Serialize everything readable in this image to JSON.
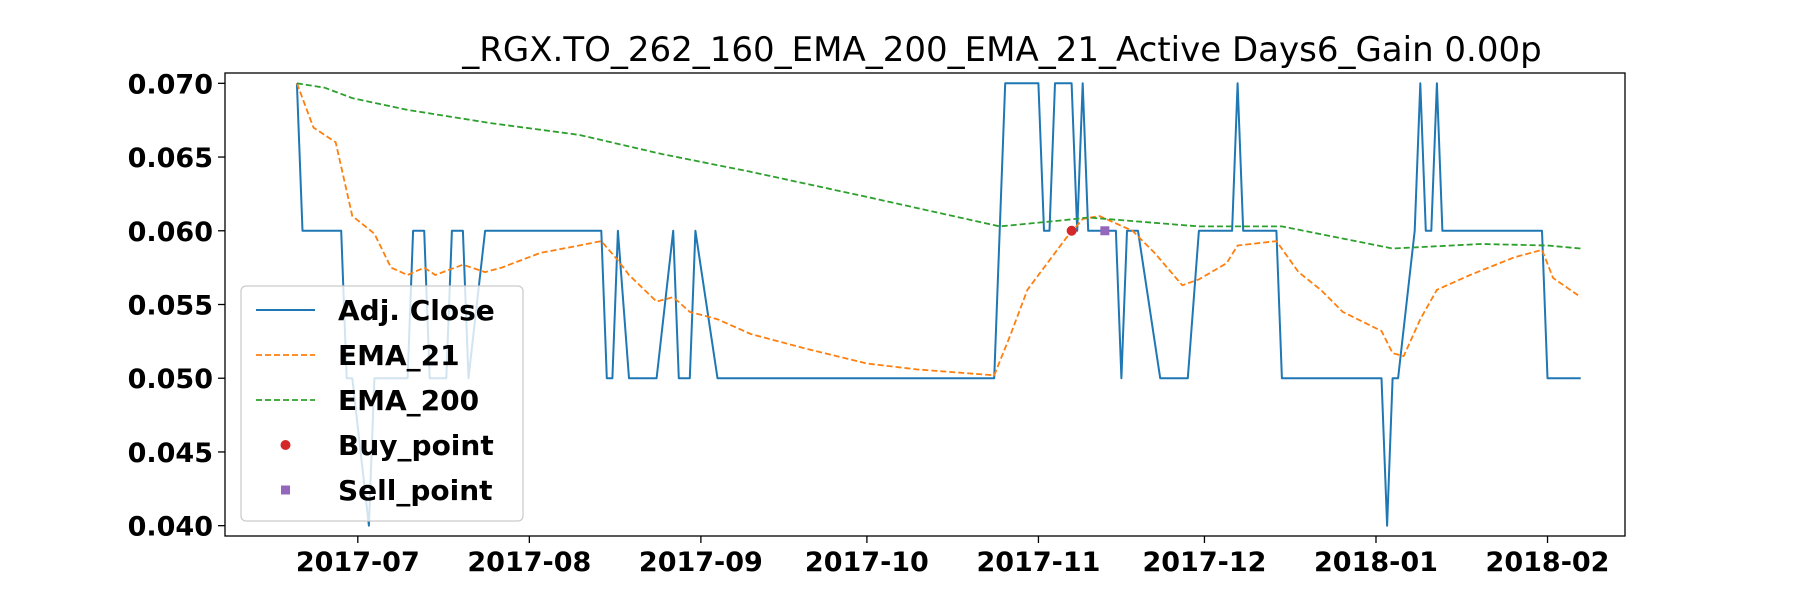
{
  "chart_data": {
    "type": "line",
    "title": "_RGX.TO_262_160_EMA_200_EMA_21_Active Days6_Gain   0.00p",
    "xlabel": "",
    "ylabel": "",
    "xlim": [
      "2017-06-07",
      "2018-02-15"
    ],
    "ylim": [
      0.0393,
      0.0707
    ],
    "grid": false,
    "legend_position": "lower-left",
    "x_ticks": [
      "2017-07",
      "2017-08",
      "2017-09",
      "2017-10",
      "2017-11",
      "2017-12",
      "2018-01",
      "2018-02"
    ],
    "y_ticks": [
      "0.070",
      "0.065",
      "0.060",
      "0.055",
      "0.050",
      "0.045",
      "0.040"
    ],
    "colors": {
      "adj_close": "#1f77b4",
      "ema_21": "#ff7f0e",
      "ema_200": "#2ca02c",
      "buy": "#d62728",
      "sell": "#9467bd"
    },
    "series": [
      {
        "name": "Adj. Close",
        "style": "solid",
        "points": [
          [
            "2017-06-20",
            0.07
          ],
          [
            "2017-06-21",
            0.06
          ],
          [
            "2017-06-28",
            0.06
          ],
          [
            "2017-06-29",
            0.05
          ],
          [
            "2017-06-30",
            0.05
          ],
          [
            "2017-07-03",
            0.04
          ],
          [
            "2017-07-04",
            0.05
          ],
          [
            "2017-07-10",
            0.05
          ],
          [
            "2017-07-11",
            0.06
          ],
          [
            "2017-07-13",
            0.06
          ],
          [
            "2017-07-14",
            0.05
          ],
          [
            "2017-07-17",
            0.05
          ],
          [
            "2017-07-18",
            0.06
          ],
          [
            "2017-07-20",
            0.06
          ],
          [
            "2017-07-21",
            0.05
          ],
          [
            "2017-07-24",
            0.06
          ],
          [
            "2017-08-14",
            0.06
          ],
          [
            "2017-08-15",
            0.05
          ],
          [
            "2017-08-16",
            0.05
          ],
          [
            "2017-08-17",
            0.06
          ],
          [
            "2017-08-19",
            0.05
          ],
          [
            "2017-08-24",
            0.05
          ],
          [
            "2017-08-27",
            0.06
          ],
          [
            "2017-08-28",
            0.05
          ],
          [
            "2017-08-30",
            0.05
          ],
          [
            "2017-08-31",
            0.06
          ],
          [
            "2017-09-04",
            0.05
          ],
          [
            "2017-10-24",
            0.05
          ],
          [
            "2017-10-26",
            0.07
          ],
          [
            "2017-11-01",
            0.07
          ],
          [
            "2017-11-02",
            0.06
          ],
          [
            "2017-11-03",
            0.06
          ],
          [
            "2017-11-04",
            0.07
          ],
          [
            "2017-11-07",
            0.07
          ],
          [
            "2017-11-08",
            0.06
          ],
          [
            "2017-11-09",
            0.07
          ],
          [
            "2017-11-10",
            0.06
          ],
          [
            "2017-11-15",
            0.06
          ],
          [
            "2017-11-16",
            0.05
          ],
          [
            "2017-11-17",
            0.06
          ],
          [
            "2017-11-19",
            0.06
          ],
          [
            "2017-11-23",
            0.05
          ],
          [
            "2017-11-28",
            0.05
          ],
          [
            "2017-11-30",
            0.06
          ],
          [
            "2017-12-06",
            0.06
          ],
          [
            "2017-12-07",
            0.07
          ],
          [
            "2017-12-08",
            0.06
          ],
          [
            "2017-12-14",
            0.06
          ],
          [
            "2017-12-15",
            0.05
          ],
          [
            "2018-01-02",
            0.05
          ],
          [
            "2018-01-03",
            0.04
          ],
          [
            "2018-01-04",
            0.05
          ],
          [
            "2018-01-05",
            0.05
          ],
          [
            "2018-01-08",
            0.06
          ],
          [
            "2018-01-09",
            0.07
          ],
          [
            "2018-01-10",
            0.06
          ],
          [
            "2018-01-11",
            0.06
          ],
          [
            "2018-01-12",
            0.07
          ],
          [
            "2018-01-13",
            0.06
          ],
          [
            "2018-01-31",
            0.06
          ],
          [
            "2018-02-01",
            0.05
          ],
          [
            "2018-02-07",
            0.05
          ]
        ]
      },
      {
        "name": "EMA_21",
        "style": "dashed",
        "points": [
          [
            "2017-06-20",
            0.07
          ],
          [
            "2017-06-23",
            0.067
          ],
          [
            "2017-06-27",
            0.066
          ],
          [
            "2017-06-30",
            0.061
          ],
          [
            "2017-07-04",
            0.0598
          ],
          [
            "2017-07-07",
            0.0575
          ],
          [
            "2017-07-10",
            0.057
          ],
          [
            "2017-07-13",
            0.0575
          ],
          [
            "2017-07-15",
            0.057
          ],
          [
            "2017-07-20",
            0.0577
          ],
          [
            "2017-07-24",
            0.0572
          ],
          [
            "2017-07-27",
            0.0575
          ],
          [
            "2017-08-03",
            0.0585
          ],
          [
            "2017-08-10",
            0.059
          ],
          [
            "2017-08-14",
            0.0593
          ],
          [
            "2017-08-17",
            0.058
          ],
          [
            "2017-08-19",
            0.057
          ],
          [
            "2017-08-24",
            0.0552
          ],
          [
            "2017-08-27",
            0.0555
          ],
          [
            "2017-08-30",
            0.0545
          ],
          [
            "2017-09-04",
            0.054
          ],
          [
            "2017-09-10",
            0.053
          ],
          [
            "2017-09-20",
            0.052
          ],
          [
            "2017-10-01",
            0.051
          ],
          [
            "2017-10-10",
            0.0506
          ],
          [
            "2017-10-24",
            0.0502
          ],
          [
            "2017-10-27",
            0.053
          ],
          [
            "2017-10-30",
            0.056
          ],
          [
            "2017-11-02",
            0.0575
          ],
          [
            "2017-11-06",
            0.0595
          ],
          [
            "2017-11-09",
            0.0608
          ],
          [
            "2017-11-12",
            0.061
          ],
          [
            "2017-11-18",
            0.06
          ],
          [
            "2017-11-22",
            0.0585
          ],
          [
            "2017-11-27",
            0.0563
          ],
          [
            "2017-11-30",
            0.0567
          ],
          [
            "2017-12-05",
            0.0578
          ],
          [
            "2017-12-07",
            0.059
          ],
          [
            "2017-12-14",
            0.0593
          ],
          [
            "2017-12-18",
            0.0572
          ],
          [
            "2017-12-22",
            0.056
          ],
          [
            "2017-12-26",
            0.0545
          ],
          [
            "2018-01-02",
            0.0532
          ],
          [
            "2018-01-04",
            0.0517
          ],
          [
            "2018-01-06",
            0.0515
          ],
          [
            "2018-01-09",
            0.054
          ],
          [
            "2018-01-12",
            0.056
          ],
          [
            "2018-01-18",
            0.057
          ],
          [
            "2018-01-26",
            0.0582
          ],
          [
            "2018-01-31",
            0.0587
          ],
          [
            "2018-02-02",
            0.0568
          ],
          [
            "2018-02-07",
            0.0555
          ]
        ]
      },
      {
        "name": "EMA_200",
        "style": "dashed",
        "points": [
          [
            "2017-06-20",
            0.07
          ],
          [
            "2017-06-25",
            0.0697
          ],
          [
            "2017-06-30",
            0.069
          ],
          [
            "2017-07-10",
            0.0682
          ],
          [
            "2017-07-25",
            0.0673
          ],
          [
            "2017-08-10",
            0.0665
          ],
          [
            "2017-08-25",
            0.0652
          ],
          [
            "2017-09-10",
            0.064
          ],
          [
            "2017-10-01",
            0.0623
          ],
          [
            "2017-10-25",
            0.0603
          ],
          [
            "2017-11-05",
            0.0607
          ],
          [
            "2017-11-10",
            0.0609
          ],
          [
            "2017-11-30",
            0.0603
          ],
          [
            "2017-12-15",
            0.0603
          ],
          [
            "2018-01-04",
            0.0588
          ],
          [
            "2018-01-20",
            0.0591
          ],
          [
            "2018-02-01",
            0.059
          ],
          [
            "2018-02-07",
            0.0588
          ]
        ]
      }
    ],
    "markers": [
      {
        "name": "Buy_point",
        "shape": "circle",
        "points": [
          [
            "2017-11-07",
            0.06
          ]
        ]
      },
      {
        "name": "Sell_point",
        "shape": "square",
        "points": [
          [
            "2017-11-13",
            0.06
          ]
        ]
      }
    ],
    "legend": [
      "Adj. Close",
      "EMA_21",
      "EMA_200",
      "Buy_point",
      "Sell_point"
    ]
  }
}
